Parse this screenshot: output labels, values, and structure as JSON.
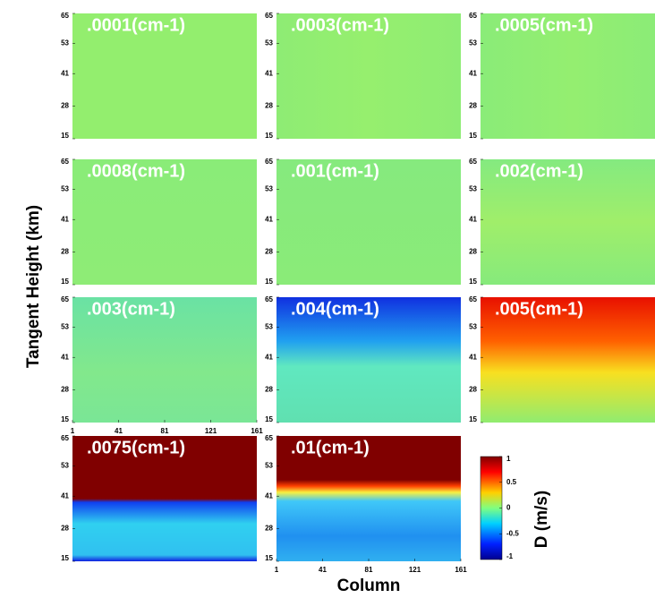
{
  "y_axis_label": "Tangent Height (km)",
  "x_axis_label": "Column",
  "ylim": [
    15,
    65
  ],
  "yticks": [
    65,
    53,
    41,
    28,
    15
  ],
  "xlim": [
    1,
    161
  ],
  "xticks": [
    1,
    41,
    81,
    121,
    161
  ],
  "panels": [
    {
      "label": ".0001(cm-1)"
    },
    {
      "label": ".0003(cm-1)"
    },
    {
      "label": ".0005(cm-1)"
    },
    {
      "label": ".0008(cm-1)"
    },
    {
      "label": ".001(cm-1)"
    },
    {
      "label": ".002(cm-1)"
    },
    {
      "label": ".003(cm-1)"
    },
    {
      "label": ".004(cm-1)"
    },
    {
      "label": ".005(cm-1)"
    },
    {
      "label": ".0075(cm-1)"
    },
    {
      "label": ".01(cm-1)"
    }
  ],
  "colorbar": {
    "label": "D (m/s)",
    "lim": [
      -1,
      1
    ],
    "ticks": [
      1,
      0.5,
      0,
      -0.5,
      -1
    ]
  }
}
